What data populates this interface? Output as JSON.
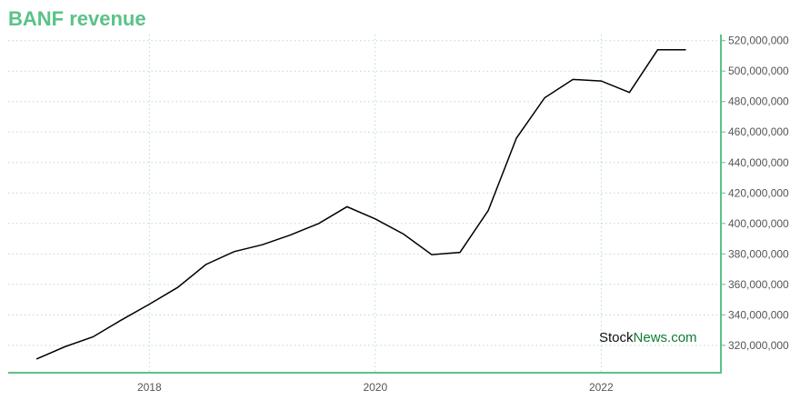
{
  "header": {
    "title": "BANF revenue"
  },
  "watermark": {
    "part1": "Stock",
    "part2": "News.com"
  },
  "colors": {
    "accent": "#5ac287",
    "grid": "#b8dcc6",
    "line": "#000000",
    "watermark_dark": "#111111",
    "watermark_green": "#0f7b34"
  },
  "chart_data": {
    "type": "line",
    "title": "BANF revenue",
    "xlabel": "",
    "ylabel": "",
    "x_ticks": [
      "2018",
      "2020",
      "2022"
    ],
    "x_tick_values": [
      2018.0,
      2020.0,
      2022.0
    ],
    "y_ticks": [
      320000000,
      340000000,
      360000000,
      380000000,
      400000000,
      420000000,
      440000000,
      460000000,
      480000000,
      500000000,
      520000000
    ],
    "y_tick_labels": [
      "320,000,000",
      "340,000,000",
      "360,000,000",
      "380,000,000",
      "400,000,000",
      "420,000,000",
      "440,000,000",
      "460,000,000",
      "480,000,000",
      "500,000,000",
      "520,000,000"
    ],
    "xlim": [
      2016.75,
      2023.06
    ],
    "ylim": [
      302000000,
      524000000
    ],
    "grid": true,
    "y_axis_side": "right",
    "series": [
      {
        "x": [
          2017.0,
          2017.25,
          2017.5,
          2017.75,
          2018.0,
          2018.25,
          2018.5,
          2018.75,
          2019.0,
          2019.25,
          2019.5,
          2019.75,
          2020.0,
          2020.25,
          2020.5,
          2020.75,
          2021.0,
          2021.25,
          2021.5,
          2021.75,
          2022.0,
          2022.25,
          2022.5,
          2022.75
        ],
        "y": [
          311000000,
          319000000,
          325500000,
          336500000,
          347000000,
          358000000,
          373000000,
          381500000,
          386000000,
          392500000,
          400000000,
          411000000,
          403000000,
          393000000,
          379500000,
          381000000,
          408500000,
          456000000,
          482500000,
          494500000,
          493500000,
          486000000,
          514000000,
          514000000
        ]
      }
    ]
  }
}
